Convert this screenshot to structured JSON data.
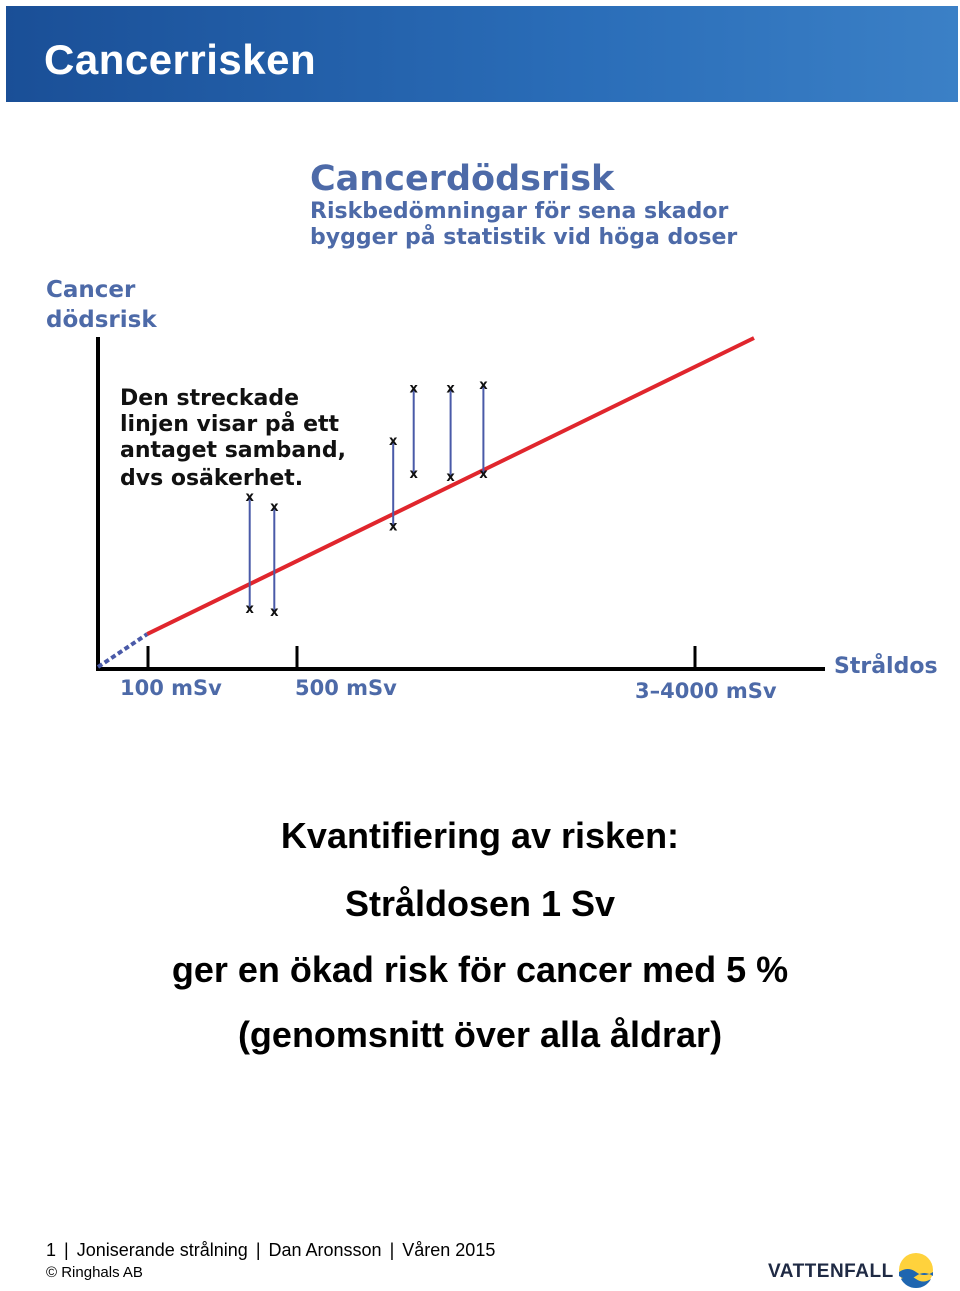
{
  "header": {
    "title": "Cancerrisken"
  },
  "chart_data": {
    "type": "line",
    "title": "Cancerdödsrisk",
    "subtitle_lines": [
      "Riskbedömningar  för sena skador",
      "bygger på statistik vid höga doser"
    ],
    "ylabel_lines": [
      "Cancer",
      "dödsrisk"
    ],
    "xlabel": "Stråldos",
    "x_ticks": [
      "100 mSv",
      "500 mSv",
      "3–4000 mSv"
    ],
    "annotation_lines": [
      "Den streckade",
      "linjen visar på ett",
      "antaget samband,",
      "dvs osäkerhet."
    ],
    "grid": false,
    "colors": {
      "measured_line": "#e0262d",
      "assumed_line": "#4a5aa8",
      "axis": "#000000"
    },
    "series": [
      {
        "style": "dashed",
        "x": [
          0,
          0.12
        ],
        "y": [
          0,
          0.1
        ]
      },
      {
        "style": "solid",
        "x": [
          0.12,
          1.6
        ],
        "y": [
          0.1,
          1.0
        ]
      }
    ],
    "error_bars": [
      {
        "x": 0.37,
        "low": 0.18,
        "high": 0.52
      },
      {
        "x": 0.43,
        "low": 0.17,
        "high": 0.49
      },
      {
        "x": 0.72,
        "low": 0.43,
        "high": 0.69
      },
      {
        "x": 0.77,
        "low": 0.59,
        "high": 0.85
      },
      {
        "x": 0.86,
        "low": 0.58,
        "high": 0.85
      },
      {
        "x": 0.94,
        "low": 0.59,
        "high": 0.86
      }
    ]
  },
  "body": {
    "line1": "Kvantifiering av risken:",
    "line2": "Stråldosen 1 Sv",
    "line3": "ger en ökad risk för cancer med 5 %",
    "line4": "(genomsnitt över alla åldrar)"
  },
  "footer": {
    "page": "1",
    "course": "Joniserande strålning",
    "author": "Dan Aronsson",
    "term": "Våren 2015",
    "copyright": "© Ringhals AB",
    "logo_text": "VATTENFALL"
  }
}
